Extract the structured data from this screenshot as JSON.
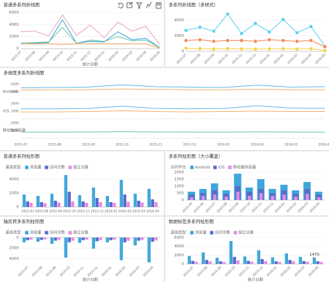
{
  "chart_data": [
    {
      "type": "line",
      "title": "普通多系列折线图",
      "xlabel": "统计日期",
      "categories": [
        "2015-07",
        "2015-08",
        "2015-09",
        "2015-10",
        "2015-11",
        "2015-12",
        "2016-01",
        "2016-02",
        "2016-03",
        "2016-04",
        "2016-05"
      ],
      "ylim": [
        0,
        6000
      ],
      "yticks": [
        0,
        2000,
        4000,
        6000
      ],
      "grid": true,
      "series": [
        {
          "color": "#e8a9bf",
          "values": [
            2800,
            2900,
            2100,
            5600,
            2200,
            3900,
            1800,
            4400,
            2900,
            3700,
            700
          ]
        },
        {
          "color": "#3fa7dc",
          "values": [
            800,
            900,
            1000,
            4800,
            900,
            1200,
            1100,
            2800,
            1500,
            1700,
            200
          ]
        },
        {
          "color": "#6cc5a8",
          "values": [
            900,
            1000,
            1100,
            3500,
            900,
            1400,
            1200,
            2000,
            1300,
            1400,
            200
          ]
        },
        {
          "color": "#f0a35c",
          "values": [
            800,
            800,
            800,
            700,
            800,
            800,
            800,
            800,
            800,
            800,
            100
          ]
        }
      ]
    },
    {
      "type": "line",
      "title": "多系列折线图（多样式）",
      "markers": true,
      "categories": [
        "2015-07",
        "2015-08",
        "2015-09",
        "2015-10",
        "2015-11",
        "2015-12",
        "2016-01",
        "2016-02",
        "2016-03",
        "2016-04",
        "2016-05"
      ],
      "ylim": [
        0,
        5000
      ],
      "yticks": [
        0,
        2000,
        4000
      ],
      "grid": true,
      "series": [
        {
          "color": "#5ed0f0",
          "values": [
            2700,
            3100,
            2600,
            4800,
            2300,
            3600,
            2500,
            4100,
            2400,
            3200,
            700
          ]
        },
        {
          "color": "#f08a5d",
          "values": [
            1400,
            1500,
            1300,
            1400,
            1400,
            1300,
            1500,
            1400,
            1300,
            1400,
            600
          ]
        },
        {
          "color": "#f5d14a",
          "values": [
            400,
            350,
            300,
            350,
            330,
            300,
            320,
            350,
            300,
            340,
            100
          ]
        }
      ]
    },
    {
      "type": "multi_line",
      "title": "多维度多系列折线图",
      "categories": [
        "2015-07",
        "2015-08",
        "2015-09",
        "2015-10",
        "2015-11",
        "2015-12",
        "2016-01",
        "2016-02",
        "2016-03",
        "2016-04"
      ],
      "rows": [
        {
          "label": "Android",
          "ylim": [
            0,
            2000
          ],
          "yticks": [
            1000,
            2000
          ],
          "series": [
            {
              "color": "#61b8e8",
              "values": [
                1500,
                1550,
                1600,
                1900,
                1650,
                1600,
                1550,
                1850,
                1600,
                1650
              ]
            },
            {
              "color": "#f2b06a",
              "values": [
                1200,
                1250,
                1250,
                1350,
                1300,
                1250,
                1250,
                1300,
                1250,
                1250
              ]
            }
          ]
        },
        {
          "label": "iOS",
          "ylim": [
            0,
            2000
          ],
          "yticks": [
            1000,
            2000
          ],
          "series": [
            {
              "color": "#61b8e8",
              "values": [
                1300,
                1300,
                1350,
                1650,
                1350,
                1300,
                1350,
                1700,
                1400,
                1350
              ]
            },
            {
              "color": "#f2b06a",
              "values": [
                900,
                900,
                950,
                1050,
                950,
                900,
                950,
                1000,
                950,
                950
              ]
            }
          ]
        },
        {
          "label": "移动端浏览器",
          "ylim": [
            0,
            2000
          ],
          "yticks": [
            1000,
            2000
          ],
          "series": [
            {
              "color": "#6cc5a8",
              "values": [
                800,
                800,
                820,
                850,
                820,
                810,
                800,
                840,
                810,
                800
              ]
            }
          ]
        }
      ]
    },
    {
      "type": "bar",
      "title": "普通多系列柱形图",
      "legend_title": "渠道类型",
      "categories": [
        "2015-07",
        "2015-08",
        "2015-09",
        "2015-10",
        "2015-11",
        "2015-12",
        "2016-01",
        "2016-02",
        "2016-03",
        "2016-04"
      ],
      "ylim": [
        0,
        5000
      ],
      "yticks": [
        0,
        2000,
        4000
      ],
      "grid": true,
      "series": [
        {
          "name": "浏览量",
          "color": "#3fa7dc",
          "values": [
            1800,
            1600,
            1900,
            4600,
            1700,
            2800,
            1600,
            3900,
            1900,
            2600
          ]
        },
        {
          "name": "访问次数",
          "color": "#5b6cc8",
          "values": [
            800,
            700,
            900,
            2200,
            800,
            1300,
            700,
            1800,
            900,
            1100
          ]
        },
        {
          "name": "独立访客",
          "color": "#e58ce6",
          "values": [
            600,
            550,
            650,
            800,
            600,
            700,
            600,
            750,
            650,
            700
          ]
        }
      ]
    },
    {
      "type": "bar",
      "title": "多系列柱形图（大小覆盖）",
      "legend_title": "访问平台",
      "overlap": true,
      "categories": [
        "2015-05",
        "2015-06",
        "2015-07",
        "2015-08",
        "2015-09",
        "2015-10",
        "2015-11",
        "2015-12",
        "2016-01",
        "2016-02",
        "2016-03",
        "2016-04"
      ],
      "ylim": [
        0,
        2000
      ],
      "yticks": [
        0,
        500,
        1000,
        1500,
        2000
      ],
      "grid": true,
      "series": [
        {
          "name": "Android",
          "color": "#3fa7dc",
          "values": [
            600,
            800,
            1200,
            700,
            1900,
            900,
            1500,
            800,
            1100,
            700,
            1300,
            600
          ]
        },
        {
          "name": "iOS",
          "color": "#5b6cc8",
          "values": [
            400,
            500,
            700,
            450,
            1000,
            600,
            800,
            500,
            700,
            450,
            800,
            400
          ]
        },
        {
          "name": "移动端浏览器",
          "color": "#e58ce6",
          "values": [
            200,
            300,
            400,
            250,
            600,
            300,
            500,
            300,
            400,
            250,
            450,
            200
          ]
        }
      ]
    },
    {
      "type": "bar",
      "title": "轴反转多系列柱形图",
      "legend_title": "渠道类型",
      "xlabel": "统计日期",
      "yreverse": true,
      "categories": [
        "2015-07",
        "2015-08",
        "2015-09",
        "2015-10",
        "2015-11",
        "2015-12",
        "2016-01",
        "2016-02",
        "2016-03",
        "2016-04"
      ],
      "ylim": [
        0,
        5000
      ],
      "yticks": [
        0,
        2000,
        4000
      ],
      "grid": true,
      "series": [
        {
          "name": "浏览量",
          "color": "#3fa7dc",
          "values": [
            900,
            800,
            1200,
            3800,
            1000,
            2100,
            900,
            4300,
            1500,
            4700
          ]
        },
        {
          "name": "访问次数",
          "color": "#5b6cc8",
          "values": [
            500,
            450,
            600,
            900,
            500,
            700,
            500,
            900,
            600,
            800
          ]
        },
        {
          "name": "独立访客",
          "color": "#e58ce6",
          "values": [
            400,
            350,
            450,
            600,
            400,
            500,
            400,
            600,
            450,
            550
          ]
        }
      ]
    },
    {
      "type": "bar",
      "title": "数据标签多系列柱形图",
      "legend_title": "渠道类型",
      "xlabel": "统计日期",
      "categories": [
        "2015-07",
        "2015-08",
        "2015-09",
        "2015-10",
        "2015-11",
        "2015-12",
        "2016-01",
        "2016-02",
        "2016-03",
        "2016-04"
      ],
      "ylim": [
        0,
        6000
      ],
      "yticks": [
        0,
        2000,
        4000,
        6000
      ],
      "grid": true,
      "series": [
        {
          "name": "浏览量",
          "color": "#3fa7dc",
          "values": [
            1800,
            2600,
            1400,
            5200,
            1700,
            3100,
            1500,
            2400,
            1600,
            1470
          ],
          "value_labels": [
            null,
            null,
            null,
            null,
            null,
            null,
            null,
            null,
            null,
            "1470"
          ]
        },
        {
          "name": "访问次数",
          "color": "#5b6cc8",
          "values": [
            700,
            900,
            600,
            1600,
            700,
            1100,
            600,
            900,
            650,
            600
          ]
        },
        {
          "name": "独立访客",
          "color": "#e58ce6",
          "values": [
            500,
            600,
            450,
            800,
            500,
            650,
            450,
            600,
            500,
            450
          ]
        }
      ]
    }
  ]
}
